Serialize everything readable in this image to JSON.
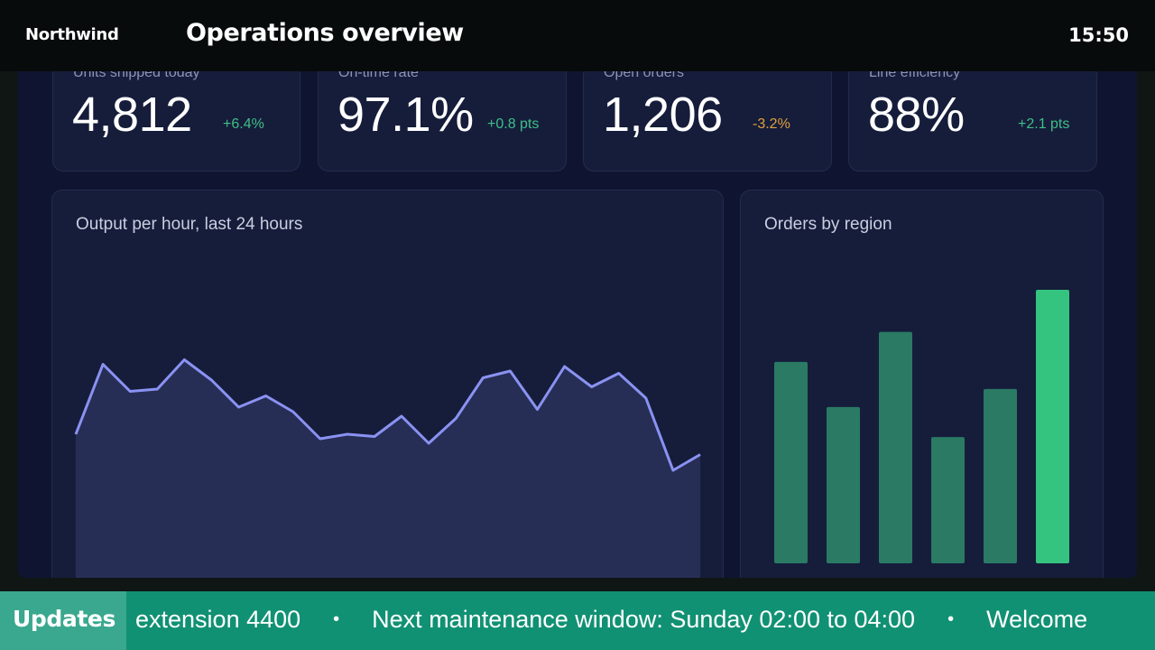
{
  "header": {
    "brand": "Northwind",
    "title": "Operations overview",
    "clock": "15:50"
  },
  "kpis": [
    {
      "label": "Units shipped today",
      "value": "4,812",
      "delta": "+6.4%",
      "trend": "up"
    },
    {
      "label": "On-time rate",
      "value": "97.1%",
      "delta": "+0.8 pts",
      "trend": "up"
    },
    {
      "label": "Open orders",
      "value": "1,206",
      "delta": "-3.2%",
      "trend": "down"
    },
    {
      "label": "Line efficiency",
      "value": "88%",
      "delta": "+2.1 pts",
      "trend": "up"
    }
  ],
  "colors": {
    "up": "#3fbf86",
    "down": "#e0a03a",
    "line": "#8a92f2",
    "area": "#272e56",
    "bar": "#2a7a64",
    "bar_highlight": "#35c47f"
  },
  "output_chart": {
    "title": "Output per hour, last 24 hours",
    "chart_data": {
      "type": "area",
      "x": [
        1,
        2,
        3,
        4,
        5,
        6,
        7,
        8,
        9,
        10,
        11,
        12,
        13,
        14,
        15,
        16,
        17,
        18,
        19,
        20,
        21,
        22,
        23,
        24
      ],
      "values": [
        66,
        97,
        85,
        86,
        99,
        90,
        78,
        83,
        76,
        64,
        66,
        65,
        74,
        62,
        73,
        91,
        94,
        77,
        96,
        87,
        93,
        82,
        50,
        57
      ],
      "ylim": [
        0,
        140
      ],
      "grid": false
    }
  },
  "region_chart": {
    "title": "Orders by region",
    "chart_data": {
      "type": "bar",
      "values": [
        67,
        52,
        77,
        42,
        58,
        91
      ],
      "highlight_index": 5,
      "ylim": [
        0,
        100
      ],
      "grid": false
    }
  },
  "ticker": {
    "label": "Updates",
    "items": [
      "extension 4400",
      "Next maintenance window: Sunday 02:00 to 04:00",
      "Welcome"
    ],
    "separator": "•"
  }
}
